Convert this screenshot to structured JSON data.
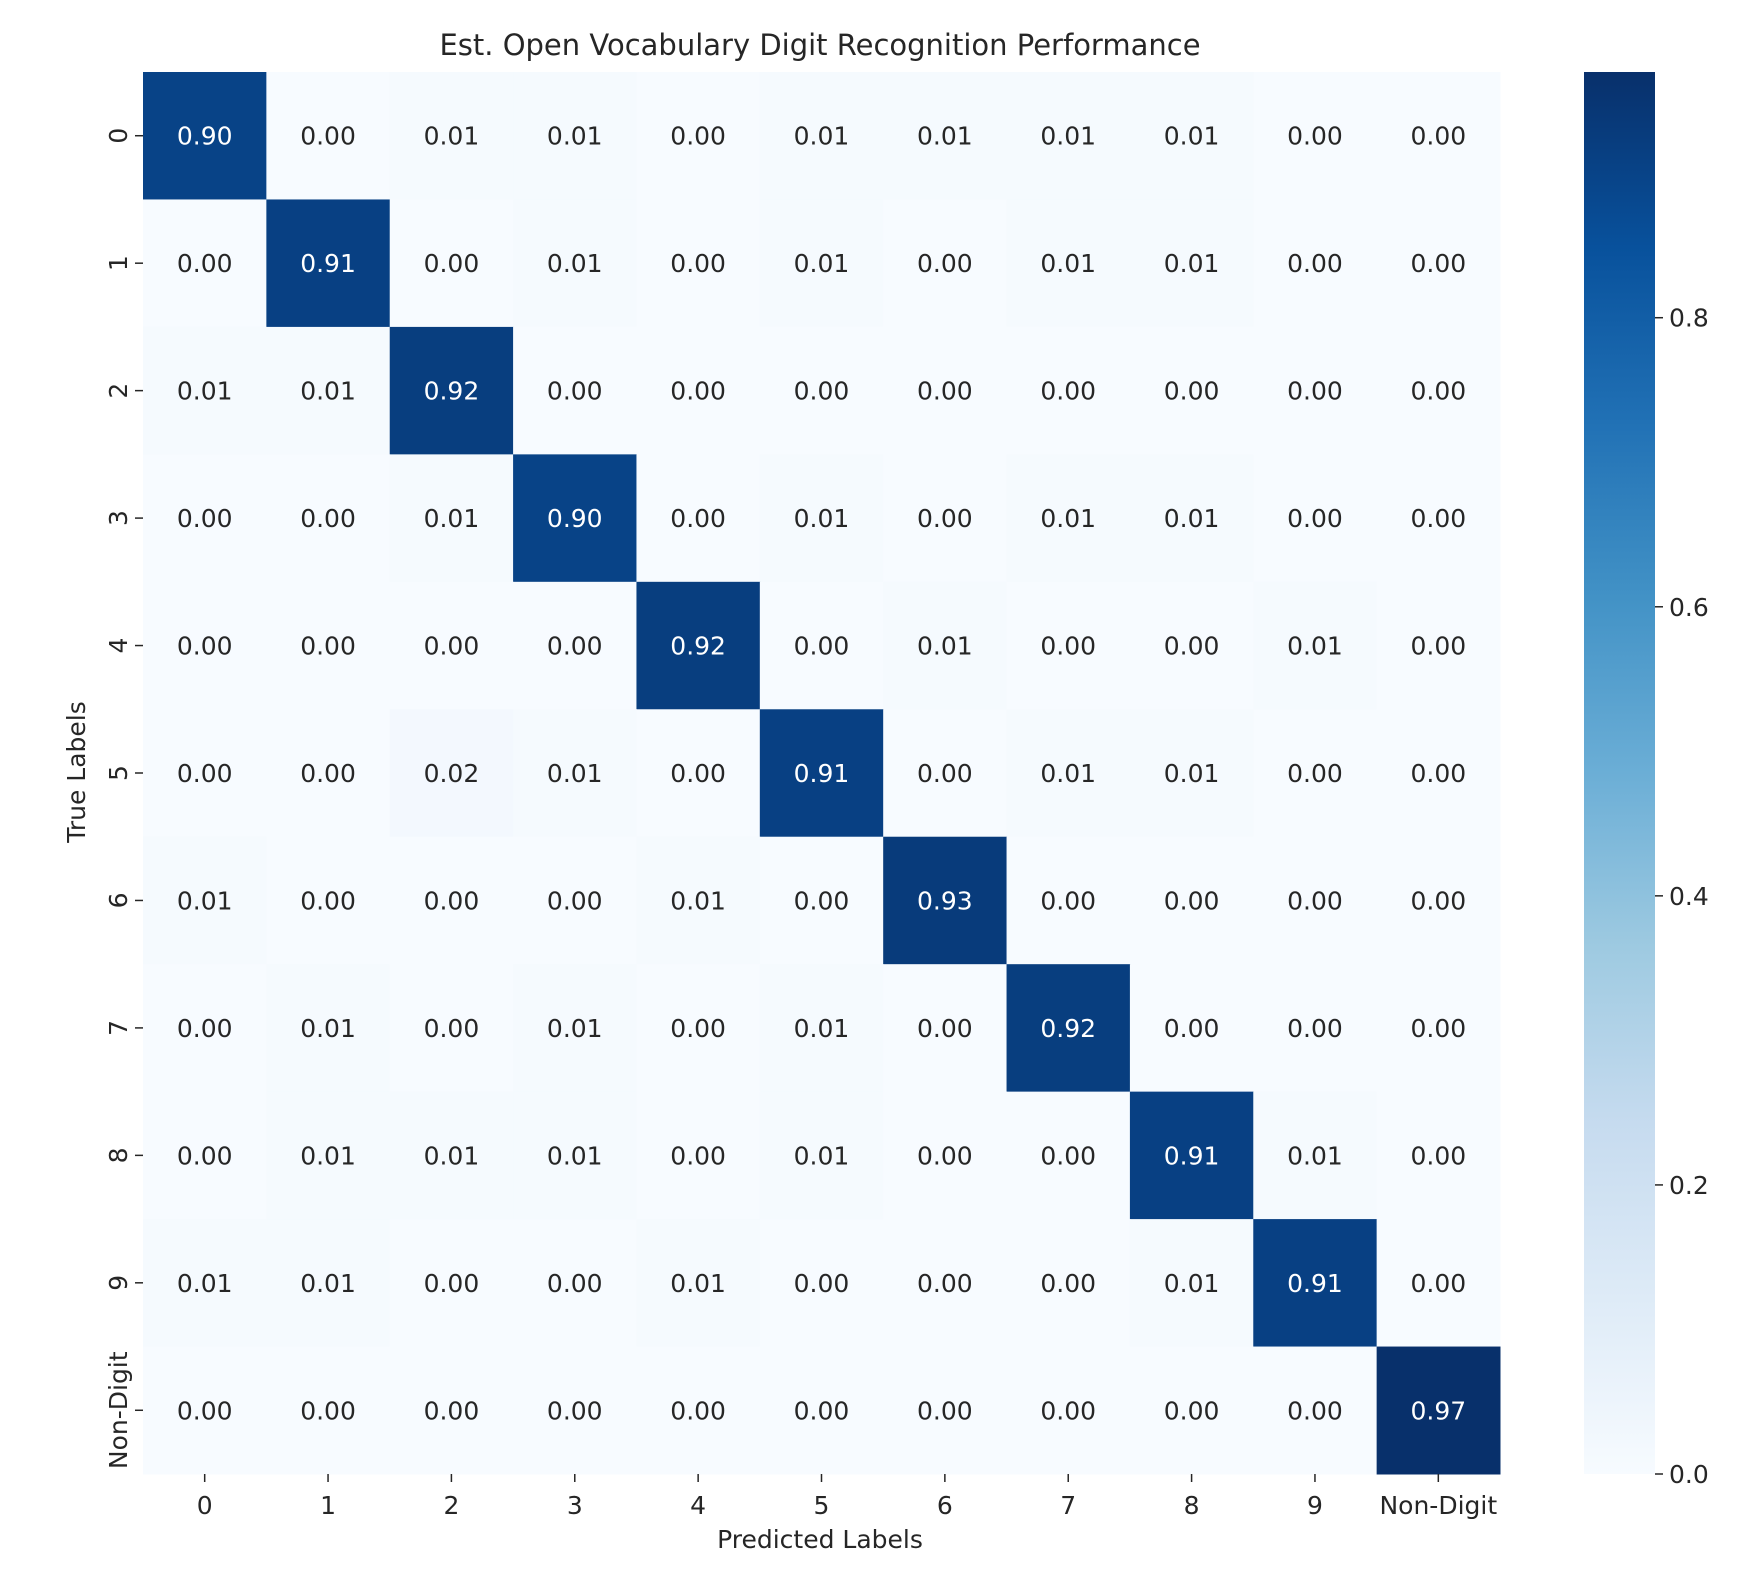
{
  "chart_data": {
    "type": "heatmap",
    "title": "Est. Open Vocabulary Digit Recognition Performance",
    "xlabel": "Predicted Labels",
    "ylabel": "True Labels",
    "x_categories": [
      "0",
      "1",
      "2",
      "3",
      "4",
      "5",
      "6",
      "7",
      "8",
      "9",
      "Non-Digit"
    ],
    "y_categories": [
      "0",
      "1",
      "2",
      "3",
      "4",
      "5",
      "6",
      "7",
      "8",
      "9",
      "Non-Digit"
    ],
    "values": [
      [
        0.9,
        0.0,
        0.01,
        0.01,
        0.0,
        0.01,
        0.01,
        0.01,
        0.01,
        0.0,
        0.0
      ],
      [
        0.0,
        0.91,
        0.0,
        0.01,
        0.0,
        0.01,
        0.0,
        0.01,
        0.01,
        0.0,
        0.0
      ],
      [
        0.01,
        0.01,
        0.92,
        0.0,
        0.0,
        0.0,
        0.0,
        0.0,
        0.0,
        0.0,
        0.0
      ],
      [
        0.0,
        0.0,
        0.01,
        0.9,
        0.0,
        0.01,
        0.0,
        0.01,
        0.01,
        0.0,
        0.0
      ],
      [
        0.0,
        0.0,
        0.0,
        0.0,
        0.92,
        0.0,
        0.01,
        0.0,
        0.0,
        0.01,
        0.0
      ],
      [
        0.0,
        0.0,
        0.02,
        0.01,
        0.0,
        0.91,
        0.0,
        0.01,
        0.01,
        0.0,
        0.0
      ],
      [
        0.01,
        0.0,
        0.0,
        0.0,
        0.01,
        0.0,
        0.93,
        0.0,
        0.0,
        0.0,
        0.0
      ],
      [
        0.0,
        0.01,
        0.0,
        0.01,
        0.0,
        0.01,
        0.0,
        0.92,
        0.0,
        0.0,
        0.0
      ],
      [
        0.0,
        0.01,
        0.01,
        0.01,
        0.0,
        0.01,
        0.0,
        0.0,
        0.91,
        0.01,
        0.0
      ],
      [
        0.01,
        0.01,
        0.0,
        0.0,
        0.01,
        0.0,
        0.0,
        0.0,
        0.01,
        0.91,
        0.0
      ],
      [
        0.0,
        0.0,
        0.0,
        0.0,
        0.0,
        0.0,
        0.0,
        0.0,
        0.0,
        0.0,
        0.97
      ]
    ],
    "value_format": "2 decimals",
    "colormap": "Blues",
    "colormap_stops": [
      "#f7fbff",
      "#deebf7",
      "#c6dbef",
      "#9ecae1",
      "#6baed6",
      "#4292c6",
      "#2171b5",
      "#08519c",
      "#08306b"
    ],
    "colorbar": {
      "vmin": 0.0,
      "vmax": 0.97,
      "ticks": [
        0.0,
        0.2,
        0.4,
        0.6,
        0.8
      ],
      "tick_labels": [
        "0.0",
        "0.2",
        "0.4",
        "0.6",
        "0.8"
      ]
    },
    "grid": false,
    "legend": "colorbar right"
  },
  "colors": {
    "text_dark": "#262626",
    "text_light": "#ffffff"
  }
}
